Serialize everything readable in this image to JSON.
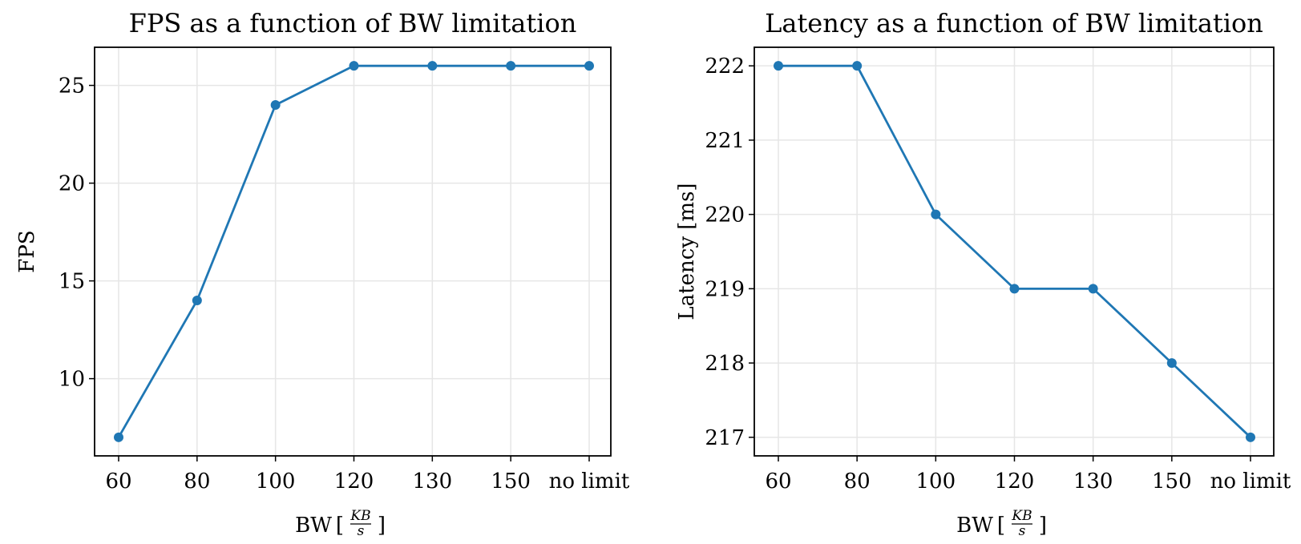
{
  "colors": {
    "series": "#1f77b4",
    "grid": "#e6e6e6",
    "axis": "#000000"
  },
  "chart_data": [
    {
      "type": "line",
      "title": "FPS as a function of BW limitation",
      "xlabel": "BW",
      "xlabel_unit": {
        "open": "[",
        "numerator": "KB",
        "denominator": "s",
        "close": "]"
      },
      "ylabel": "FPS",
      "categories": [
        "60",
        "80",
        "100",
        "120",
        "130",
        "150",
        "no limit"
      ],
      "series": [
        {
          "values": [
            7,
            14,
            24,
            26,
            26,
            26,
            26
          ]
        }
      ],
      "ylim": [
        6.05,
        26.95
      ],
      "yticks": [
        10,
        15,
        20,
        25
      ],
      "grid": true,
      "markers": true
    },
    {
      "type": "line",
      "title": "Latency as a function of BW limitation",
      "xlabel": "BW",
      "xlabel_unit": {
        "open": "[",
        "numerator": "KB",
        "denominator": "s",
        "close": "]"
      },
      "ylabel": "Latency [ms]",
      "categories": [
        "60",
        "80",
        "100",
        "120",
        "130",
        "150",
        "no limit"
      ],
      "series": [
        {
          "values": [
            222,
            222,
            220,
            219,
            219,
            218,
            217
          ]
        }
      ],
      "ylim": [
        216.75,
        222.25
      ],
      "yticks": [
        217,
        218,
        219,
        220,
        221,
        222
      ],
      "grid": true,
      "markers": true
    }
  ]
}
